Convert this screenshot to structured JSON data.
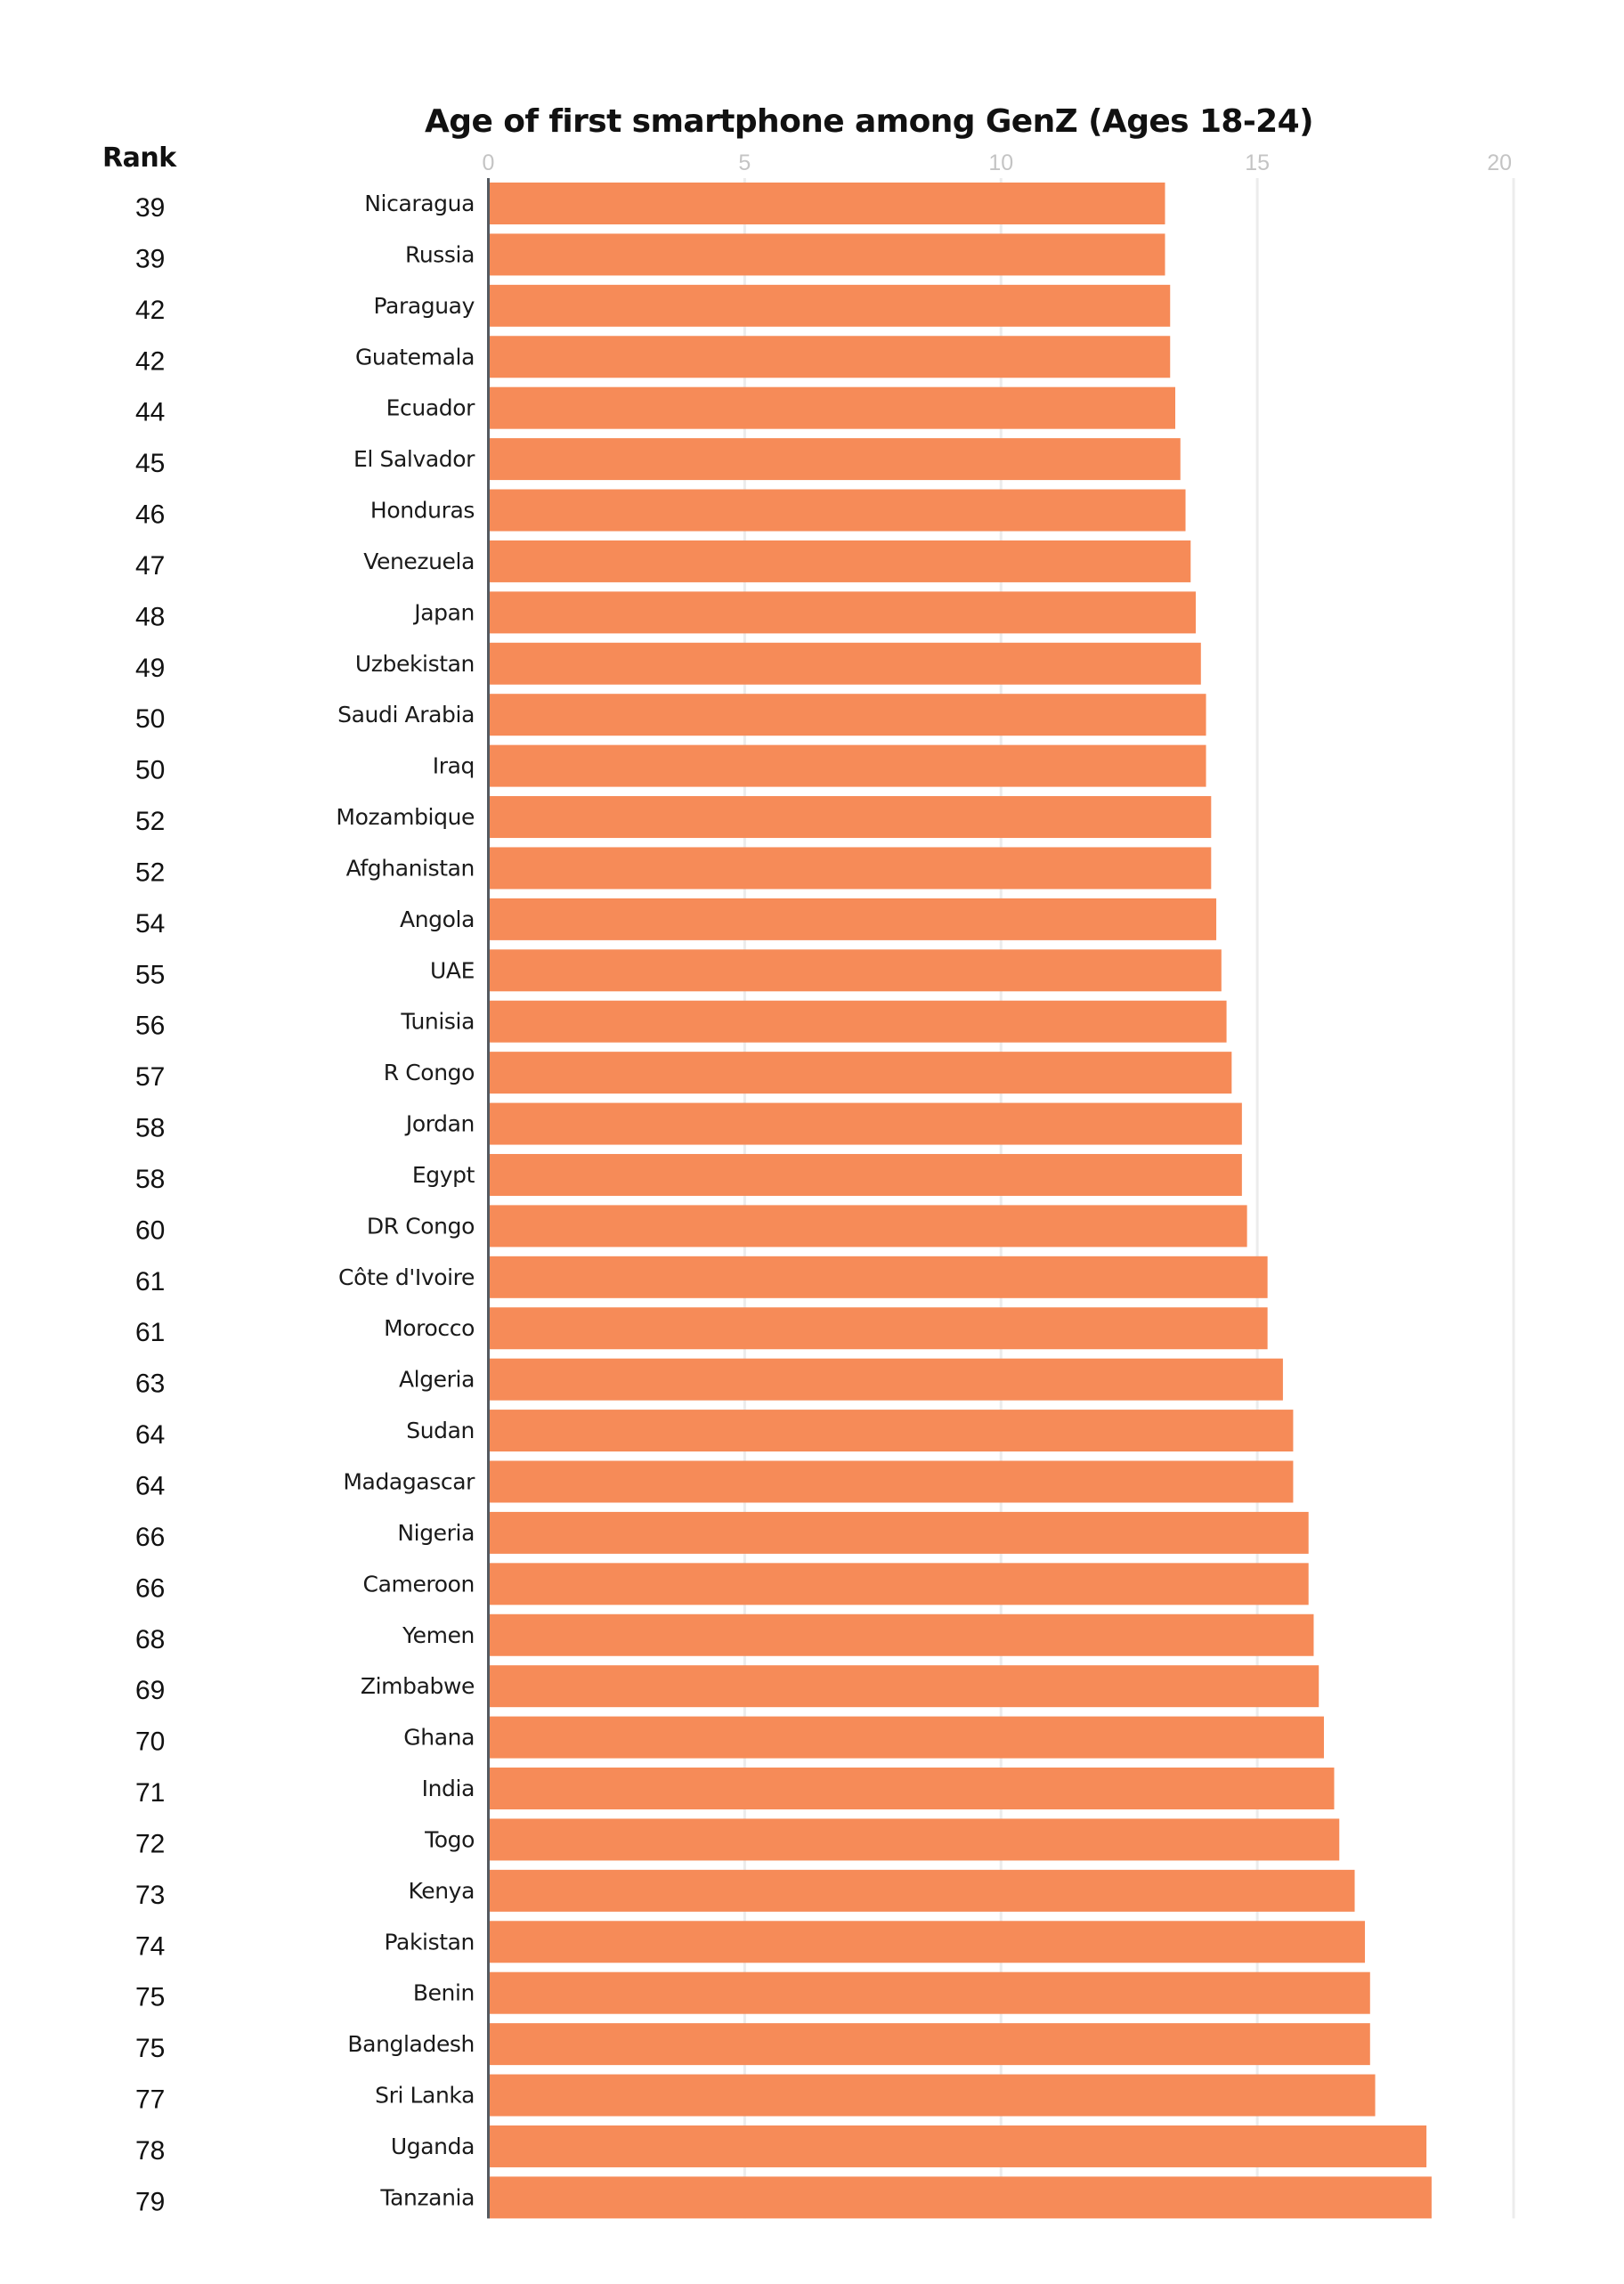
{
  "chart_data": {
    "type": "bar",
    "orientation": "horizontal",
    "title": "Age of first smartphone among GenZ (Ages 18-24)",
    "xlabel": "",
    "ylabel": "",
    "rank_header": "Rank",
    "xlim": [
      0,
      20
    ],
    "xticks": [
      0,
      5,
      10,
      15,
      20
    ],
    "grid": true,
    "bar_color": "#f68b58",
    "categories": [
      "Nicaragua",
      "Russia",
      "Paraguay",
      "Guatemala",
      "Ecuador",
      "El Salvador",
      "Honduras",
      "Venezuela",
      "Japan",
      "Uzbekistan",
      "Saudi Arabia",
      "Iraq",
      "Mozambique",
      "Afghanistan",
      "Angola",
      "UAE",
      "Tunisia",
      "R Congo",
      "Jordan",
      "Egypt",
      "DR Congo",
      "Côte d'Ivoire",
      "Morocco",
      "Algeria",
      "Sudan",
      "Madagascar",
      "Nigeria",
      "Cameroon",
      "Yemen",
      "Zimbabwe",
      "Ghana",
      "India",
      "Togo",
      "Kenya",
      "Pakistan",
      "Benin",
      "Bangladesh",
      "Sri Lanka",
      "Uganda",
      "Tanzania"
    ],
    "ranks": [
      "39",
      "39",
      "42",
      "42",
      "44",
      "45",
      "46",
      "47",
      "48",
      "49",
      "50",
      "50",
      "52",
      "52",
      "54",
      "55",
      "56",
      "57",
      "58",
      "58",
      "60",
      "61",
      "61",
      "63",
      "64",
      "64",
      "66",
      "66",
      "68",
      "69",
      "70",
      "71",
      "72",
      "73",
      "74",
      "75",
      "75",
      "77",
      "78",
      "79"
    ],
    "values": [
      13.2,
      13.2,
      13.3,
      13.3,
      13.4,
      13.5,
      13.6,
      13.7,
      13.8,
      13.9,
      14.0,
      14.0,
      14.1,
      14.1,
      14.2,
      14.3,
      14.4,
      14.5,
      14.7,
      14.7,
      14.8,
      15.2,
      15.2,
      15.5,
      15.7,
      15.7,
      16.0,
      16.0,
      16.1,
      16.2,
      16.3,
      16.5,
      16.6,
      16.9,
      17.1,
      17.2,
      17.2,
      17.3,
      18.3,
      18.4
    ]
  }
}
